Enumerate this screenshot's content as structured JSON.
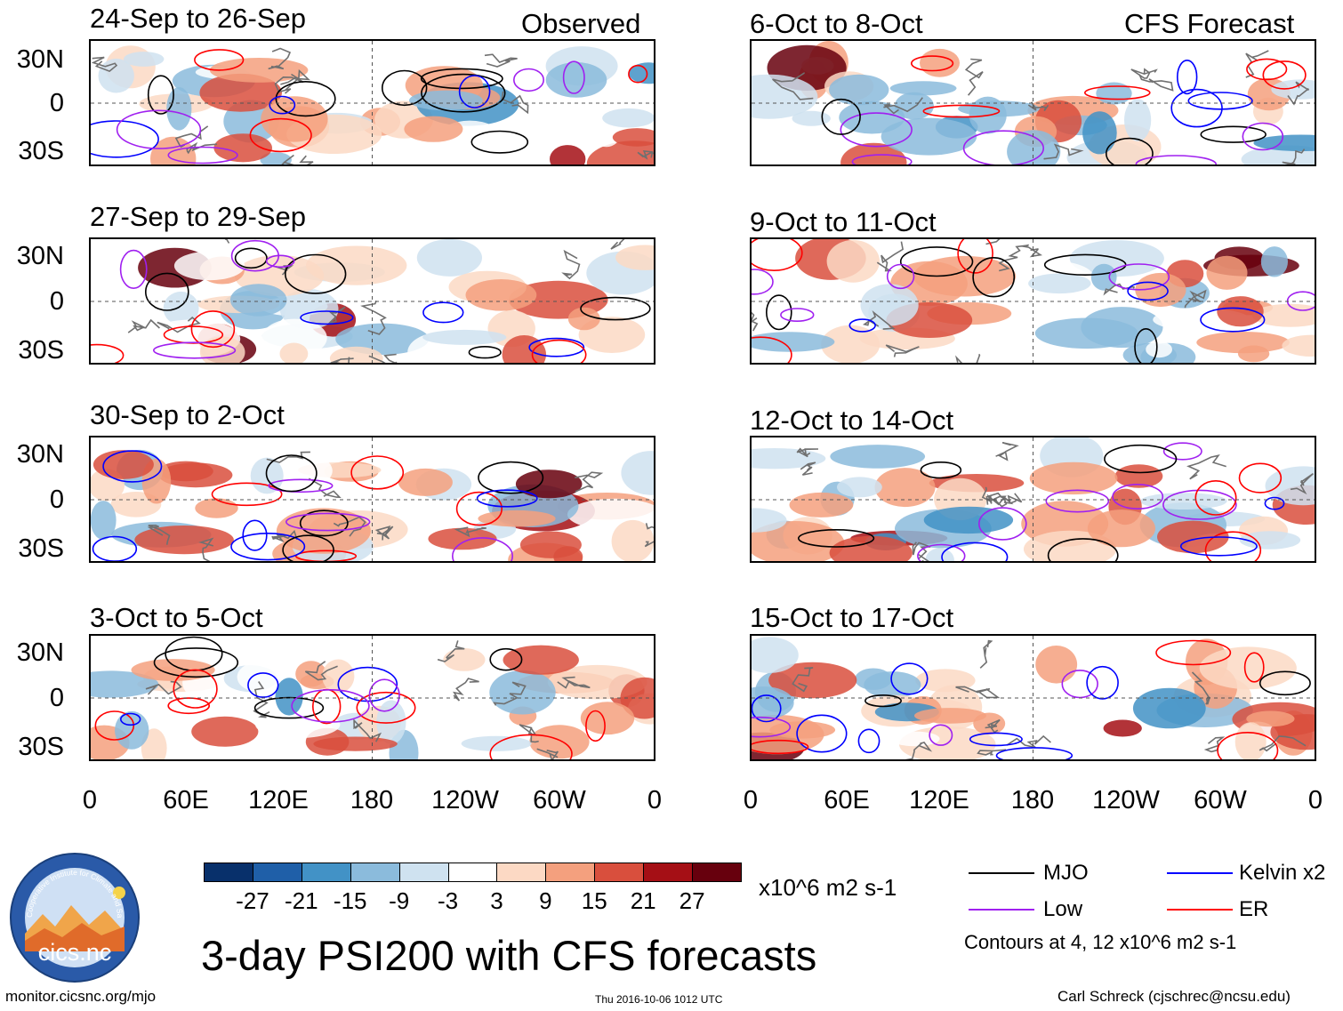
{
  "columns": {
    "left": "Observed",
    "right": "CFS Forecast"
  },
  "panels": {
    "left": [
      "24-Sep to 26-Sep",
      "27-Sep to 29-Sep",
      "30-Sep to 2-Oct",
      "3-Oct to 5-Oct"
    ],
    "right": [
      "6-Oct to 8-Oct",
      "9-Oct to 11-Oct",
      "12-Oct to 14-Oct",
      "15-Oct to 17-Oct"
    ]
  },
  "lat_labels": [
    "30N",
    "0",
    "30S"
  ],
  "lon_labels": [
    "0",
    "60E",
    "120E",
    "180",
    "120W",
    "60W",
    "0"
  ],
  "colorbar": {
    "labels": [
      "-27",
      "-21",
      "-15",
      "-9",
      "-3",
      "3",
      "9",
      "15",
      "21",
      "27"
    ],
    "colors": [
      "#08306b",
      "#1f5fa8",
      "#4292c6",
      "#8bbbdc",
      "#cfe2f0",
      "#ffffff",
      "#fcd9c4",
      "#f4a07e",
      "#d94f3d",
      "#a50f15",
      "#67000d"
    ],
    "units": "x10^6 m2 s-1"
  },
  "legend": {
    "items": [
      {
        "label": "MJO",
        "color": "#000000"
      },
      {
        "label": "Kelvin x2",
        "color": "#0000ff"
      },
      {
        "label": "Low",
        "color": "#a020f0"
      },
      {
        "label": "ER",
        "color": "#ff0000"
      }
    ],
    "note": "Contours at 4, 12 x10^6 m2 s-1"
  },
  "logo_text": "cics.nc",
  "logo_ring_text": "Cooperative Institute for Climate and Satellites",
  "title": "3-day PSI200 with CFS forecasts",
  "footer": {
    "url": "monitor.cicsnc.org/mjo",
    "timestamp": "Thu 2016-10-06 1012 UTC",
    "author": "Carl Schreck (cjschrec@ncsu.edu)"
  }
}
